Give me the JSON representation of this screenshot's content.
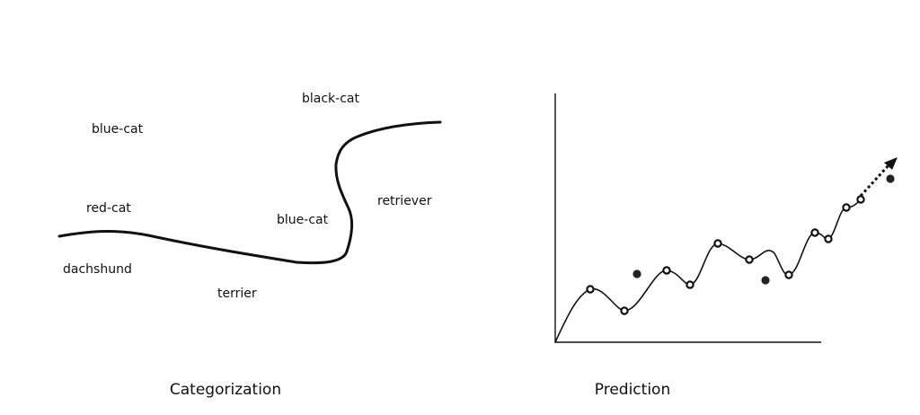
{
  "categorization": {
    "caption": "Categorization",
    "labels": {
      "blue_cat_top": "blue-cat",
      "black_cat": "black-cat",
      "red_cat": "red-cat",
      "blue_cat_middle": "blue-cat",
      "retriever": "retriever",
      "dachshund": "dachshund",
      "terrier": "terrier"
    }
  },
  "prediction": {
    "caption": "Prediction"
  },
  "colors": {
    "ink": "#111111",
    "background": "#ffffff"
  }
}
